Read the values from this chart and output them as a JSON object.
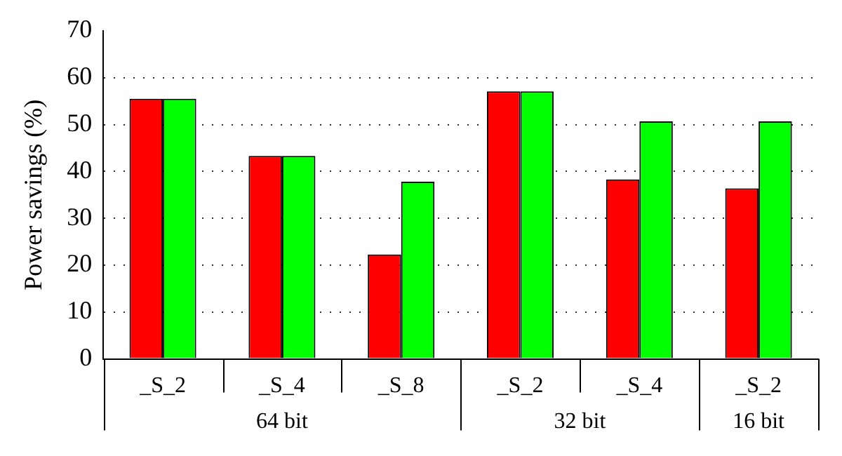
{
  "chart_data": {
    "type": "bar",
    "ylabel": "Power savings (%)",
    "categories": [
      "_S_2",
      "_S_4",
      "_S_8",
      "_S_2",
      "_S_4",
      "_S_2"
    ],
    "series": [
      {
        "color": "#ff0000",
        "values": [
          55.5,
          43.3,
          22.3,
          57.1,
          38.3,
          36.4
        ]
      },
      {
        "color": "#00ff00",
        "values": [
          55.5,
          43.3,
          37.8,
          57.1,
          50.7,
          50.7
        ]
      }
    ],
    "ylim": [
      0,
      70
    ],
    "yticks": [
      0,
      10,
      20,
      30,
      40,
      50,
      60,
      70
    ],
    "grid": "y",
    "legend": false,
    "annotations": [
      "64 bit",
      "32 bit",
      "16 bit"
    ]
  }
}
